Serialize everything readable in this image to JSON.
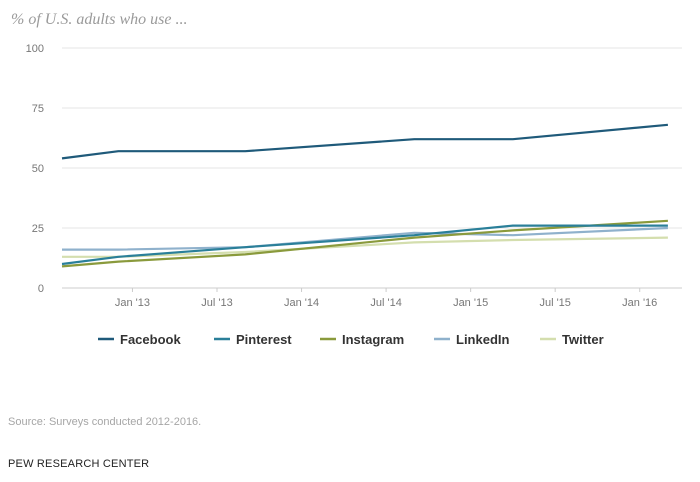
{
  "chart_data": {
    "type": "line",
    "title": "% of U.S. adults who use ...",
    "xlabel": "",
    "ylabel": "",
    "ylim": [
      0,
      100
    ],
    "yticks": [
      0,
      25,
      50,
      75,
      100
    ],
    "x_ticks": [
      "Jan '13",
      "Jul '13",
      "Jan '14",
      "Jul '14",
      "Jan '15",
      "Jul '15",
      "Jan '16"
    ],
    "x": [
      "Aug 2012",
      "Dec 2012",
      "Sep 2013",
      "Sep 2014",
      "Apr 2015",
      "Mar 2016"
    ],
    "grid": "horizontal",
    "legend_position": "bottom",
    "series": [
      {
        "name": "Facebook",
        "color": "#1f5a7a",
        "values": [
          54,
          57,
          57,
          62,
          62,
          68
        ]
      },
      {
        "name": "Pinterest",
        "color": "#2a7f99",
        "values": [
          10,
          13,
          17,
          22,
          26,
          26
        ]
      },
      {
        "name": "Instagram",
        "color": "#8a9a3c",
        "values": [
          9,
          11,
          14,
          21,
          24,
          28
        ]
      },
      {
        "name": "LinkedIn",
        "color": "#8fb1cc",
        "values": [
          16,
          16,
          17,
          23,
          22,
          25
        ]
      },
      {
        "name": "Twitter",
        "color": "#d4deae",
        "values": [
          13,
          13,
          15,
          19,
          20,
          21
        ]
      }
    ]
  },
  "source": "Source: Surveys conducted 2012-2016.",
  "brand": "PEW RESEARCH CENTER"
}
